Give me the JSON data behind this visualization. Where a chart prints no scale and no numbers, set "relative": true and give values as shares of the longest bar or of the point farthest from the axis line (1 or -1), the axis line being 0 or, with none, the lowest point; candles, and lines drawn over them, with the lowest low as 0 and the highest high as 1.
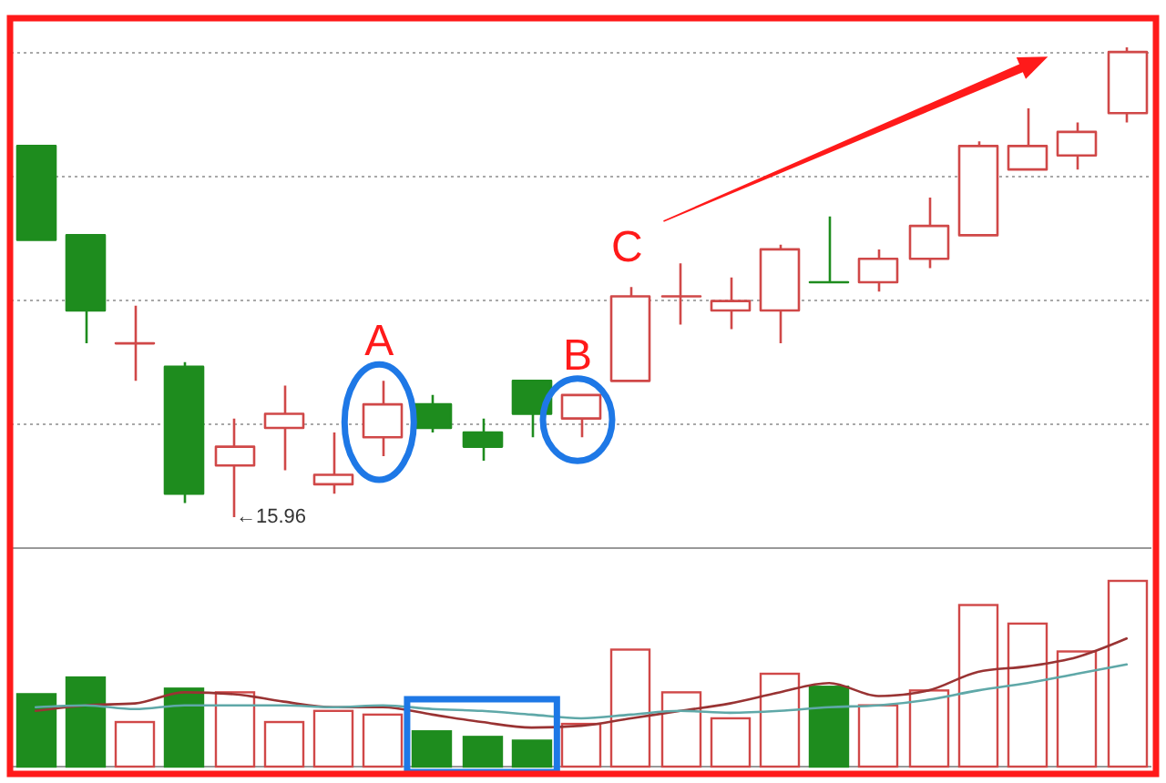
{
  "chart_data": [
    {
      "type": "candlestick",
      "relative": true,
      "grid": true,
      "categories": [
        null,
        null,
        null,
        null,
        null,
        null,
        null,
        null,
        null,
        null,
        null,
        null,
        null,
        null,
        null,
        null,
        null,
        null,
        null,
        null,
        null,
        null,
        null
      ],
      "ohlc": [
        [
          0.79,
          0.79,
          0.59,
          0.59
        ],
        [
          0.6,
          0.6,
          0.37,
          0.44
        ],
        [
          0.37,
          0.45,
          0.29,
          0.37
        ],
        [
          0.32,
          0.33,
          0.03,
          0.05
        ],
        [
          0.11,
          0.21,
          0,
          0.15
        ],
        [
          0.19,
          0.28,
          0.1,
          0.22
        ],
        [
          0.07,
          0.18,
          0.05,
          0.09
        ],
        [
          0.17,
          0.29,
          0.13,
          0.24
        ],
        [
          0.24,
          0.26,
          0.18,
          0.19
        ],
        [
          0.18,
          0.21,
          0.12,
          0.15
        ],
        [
          0.29,
          0.29,
          0.17,
          0.22
        ],
        [
          0.21,
          0.26,
          0.17,
          0.26
        ],
        [
          0.29,
          0.49,
          0.29,
          0.47
        ],
        [
          0.47,
          0.54,
          0.41,
          0.47
        ],
        [
          0.44,
          0.51,
          0.4,
          0.46
        ],
        [
          0.44,
          0.58,
          0.37,
          0.57
        ],
        [
          0.5,
          0.64,
          0.5,
          0.5
        ],
        [
          0.5,
          0.57,
          0.48,
          0.55
        ],
        [
          0.55,
          0.68,
          0.53,
          0.62
        ],
        [
          0.6,
          0.8,
          0.6,
          0.79
        ],
        [
          0.74,
          0.87,
          0.74,
          0.79
        ],
        [
          0.77,
          0.84,
          0.74,
          0.82
        ],
        [
          0.86,
          1,
          0.84,
          0.99
        ]
      ],
      "colors": [
        "#1e8c1e",
        "#1e8c1e",
        "#d04848",
        "#1e8c1e",
        "#d04848",
        "#d04848",
        "#d04848",
        "#d04848",
        "#1e8c1e",
        "#1e8c1e",
        "#1e8c1e",
        "#d04848",
        "#d04848",
        "#d04848",
        "#d04848",
        "#d04848",
        "#1e8c1e",
        "#d04848",
        "#d04848",
        "#d04848",
        "#d04848",
        "#d04848",
        "#d04848"
      ],
      "annotations": [
        {
          "text": "A",
          "y": 0.24
        },
        {
          "text": "B",
          "y": 0.26
        },
        {
          "text": "C",
          "y": 0.47
        },
        "←15.96"
      ]
    },
    {
      "type": "bar",
      "relative": true,
      "categories": [
        null,
        null,
        null,
        null,
        null,
        null,
        null,
        null,
        null,
        null,
        null,
        null,
        null,
        null,
        null,
        null,
        null,
        null,
        null,
        null,
        null,
        null,
        null
      ],
      "series": [
        {
          "type": "bar",
          "colors": [
            "#1e8c1e",
            "#1e8c1e",
            "#d04848",
            "#1e8c1e",
            "#d04848",
            "#d04848",
            "#d04848",
            "#d04848",
            "#1e8c1e",
            "#1e8c1e",
            "#1e8c1e",
            "#d04848",
            "#d04848",
            "#d04848",
            "#d04848",
            "#d04848",
            "#1e8c1e",
            "#d04848",
            "#d04848",
            "#d04848",
            "#d04848",
            "#d04848",
            "#d04848"
          ],
          "values": [
            0.39,
            0.48,
            0.24,
            0.42,
            0.4,
            0.24,
            0.3,
            0.28,
            0.19,
            0.16,
            0.14,
            0.23,
            0.63,
            0.4,
            0.26,
            0.5,
            0.43,
            0.33,
            0.41,
            0.87,
            0.77,
            0.62,
            1
          ]
        },
        {
          "type": "line",
          "color": "#993333",
          "values": [
            0.3,
            0.33,
            0.34,
            0.4,
            0.39,
            0.35,
            0.32,
            0.32,
            0.28,
            0.24,
            0.21,
            0.22,
            0.26,
            0.3,
            0.34,
            0.4,
            0.45,
            0.38,
            0.41,
            0.51,
            0.54,
            0.59,
            0.69
          ]
        },
        {
          "type": "line",
          "color": "#5fa8a8",
          "values": [
            0.32,
            0.33,
            0.31,
            0.33,
            0.33,
            0.33,
            0.32,
            0.33,
            0.31,
            0.3,
            0.28,
            0.26,
            0.28,
            0.3,
            0.29,
            0.3,
            0.32,
            0.33,
            0.36,
            0.41,
            0.45,
            0.5,
            0.55
          ]
        }
      ]
    }
  ]
}
